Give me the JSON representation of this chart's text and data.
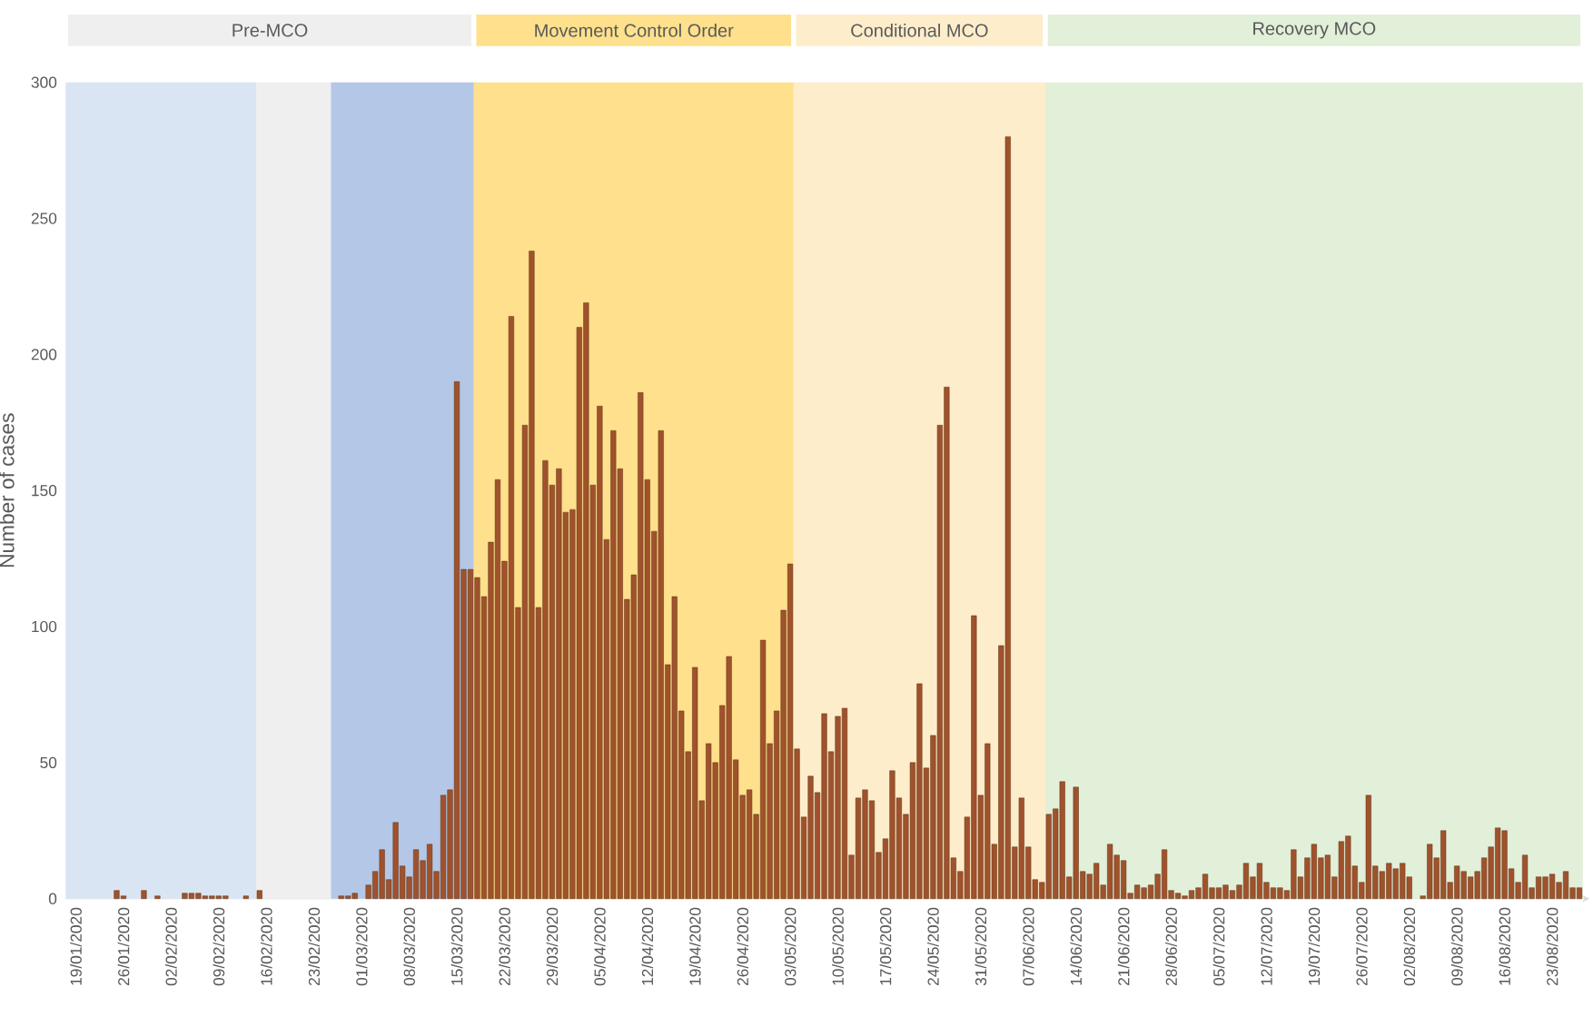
{
  "chart_data": {
    "type": "bar",
    "ylabel": "Number of cases",
    "color": "#a0522d",
    "xlim": [
      "2020-01-18",
      "2020-08-28"
    ],
    "ylim": [
      0,
      300
    ],
    "yticks": [
      0,
      50,
      100,
      150,
      200,
      250,
      300
    ],
    "xticks": [
      {
        "value": "2020-01-19",
        "label": "19/01/2020"
      },
      {
        "value": "2020-01-26",
        "label": "26/01/2020"
      },
      {
        "value": "2020-02-02",
        "label": "02/02/2020"
      },
      {
        "value": "2020-02-09",
        "label": "09/02/2020"
      },
      {
        "value": "2020-02-16",
        "label": "16/02/2020"
      },
      {
        "value": "2020-02-23",
        "label": "23/02/2020"
      },
      {
        "value": "2020-03-01",
        "label": "01/03/2020"
      },
      {
        "value": "2020-03-08",
        "label": "08/03/2020"
      },
      {
        "value": "2020-03-15",
        "label": "15/03/2020"
      },
      {
        "value": "2020-03-22",
        "label": "22/03/2020"
      },
      {
        "value": "2020-03-29",
        "label": "29/03/2020"
      },
      {
        "value": "2020-04-05",
        "label": "05/04/2020"
      },
      {
        "value": "2020-04-12",
        "label": "12/04/2020"
      },
      {
        "value": "2020-04-19",
        "label": "19/04/2020"
      },
      {
        "value": "2020-04-26",
        "label": "26/04/2020"
      },
      {
        "value": "2020-05-03",
        "label": "03/05/2020"
      },
      {
        "value": "2020-05-10",
        "label": "10/05/2020"
      },
      {
        "value": "2020-05-17",
        "label": "17/05/2020"
      },
      {
        "value": "2020-05-24",
        "label": "24/05/2020"
      },
      {
        "value": "2020-05-31",
        "label": "31/05/2020"
      },
      {
        "value": "2020-06-07",
        "label": "07/06/2020"
      },
      {
        "value": "2020-06-14",
        "label": "14/06/2020"
      },
      {
        "value": "2020-06-21",
        "label": "21/06/2020"
      },
      {
        "value": "2020-06-28",
        "label": "28/06/2020"
      },
      {
        "value": "2020-07-05",
        "label": "05/07/2020"
      },
      {
        "value": "2020-07-12",
        "label": "12/07/2020"
      },
      {
        "value": "2020-07-19",
        "label": "19/07/2020"
      },
      {
        "value": "2020-07-26",
        "label": "26/07/2020"
      },
      {
        "value": "2020-08-02",
        "label": "02/08/2020"
      },
      {
        "value": "2020-08-09",
        "label": "09/08/2020"
      },
      {
        "value": "2020-08-16",
        "label": "16/08/2020"
      },
      {
        "value": "2020-08-23",
        "label": "23/08/2020"
      }
    ],
    "bands": [
      {
        "axis": "x",
        "from": "2020-01-18",
        "to": "2020-03-18",
        "label": "Pre-MCO",
        "color": "#efefef"
      },
      {
        "axis": "x",
        "from": "2020-01-18",
        "to": "2020-02-15",
        "color": "#dae5f4"
      },
      {
        "axis": "x",
        "from": "2020-02-26",
        "to": "2020-03-18",
        "color": "#b4c7e7"
      },
      {
        "axis": "x",
        "from": "2020-03-18",
        "to": "2020-05-04",
        "label": "Movement Control Order",
        "color": "#ffe08c"
      },
      {
        "axis": "x",
        "from": "2020-05-04",
        "to": "2020-06-10",
        "label": "Conditional MCO",
        "color": "#fdedcb"
      },
      {
        "axis": "x",
        "from": "2020-06-10",
        "to": "2020-08-28",
        "label": "Recovery MCO",
        "color": "#e2efd9"
      }
    ],
    "x": [
      "2020-01-25",
      "2020-01-26",
      "2020-01-29",
      "2020-01-31",
      "2020-02-04",
      "2020-02-05",
      "2020-02-06",
      "2020-02-07",
      "2020-02-08",
      "2020-02-09",
      "2020-02-10",
      "2020-02-13",
      "2020-02-15",
      "2020-02-27",
      "2020-02-28",
      "2020-02-29",
      "2020-03-02",
      "2020-03-03",
      "2020-03-04",
      "2020-03-05",
      "2020-03-06",
      "2020-03-07",
      "2020-03-08",
      "2020-03-09",
      "2020-03-10",
      "2020-03-11",
      "2020-03-12",
      "2020-03-13",
      "2020-03-14",
      "2020-03-15",
      "2020-03-16",
      "2020-03-17",
      "2020-03-18",
      "2020-03-19",
      "2020-03-20",
      "2020-03-21",
      "2020-03-22",
      "2020-03-23",
      "2020-03-24",
      "2020-03-25",
      "2020-03-26",
      "2020-03-27",
      "2020-03-28",
      "2020-03-29",
      "2020-03-30",
      "2020-03-31",
      "2020-04-01",
      "2020-04-02",
      "2020-04-03",
      "2020-04-04",
      "2020-04-05",
      "2020-04-06",
      "2020-04-07",
      "2020-04-08",
      "2020-04-09",
      "2020-04-10",
      "2020-04-11",
      "2020-04-12",
      "2020-04-13",
      "2020-04-14",
      "2020-04-15",
      "2020-04-16",
      "2020-04-17",
      "2020-04-18",
      "2020-04-19",
      "2020-04-20",
      "2020-04-21",
      "2020-04-22",
      "2020-04-23",
      "2020-04-24",
      "2020-04-25",
      "2020-04-26",
      "2020-04-27",
      "2020-04-28",
      "2020-04-29",
      "2020-04-30",
      "2020-05-01",
      "2020-05-02",
      "2020-05-03",
      "2020-05-04",
      "2020-05-05",
      "2020-05-06",
      "2020-05-07",
      "2020-05-08",
      "2020-05-09",
      "2020-05-10",
      "2020-05-11",
      "2020-05-12",
      "2020-05-13",
      "2020-05-14",
      "2020-05-15",
      "2020-05-16",
      "2020-05-17",
      "2020-05-18",
      "2020-05-19",
      "2020-05-20",
      "2020-05-21",
      "2020-05-22",
      "2020-05-23",
      "2020-05-24",
      "2020-05-25",
      "2020-05-26",
      "2020-05-27",
      "2020-05-28",
      "2020-05-29",
      "2020-05-30",
      "2020-05-31",
      "2020-06-01",
      "2020-06-02",
      "2020-06-03",
      "2020-06-04",
      "2020-06-05",
      "2020-06-06",
      "2020-06-07",
      "2020-06-08",
      "2020-06-09",
      "2020-06-10",
      "2020-06-11",
      "2020-06-12",
      "2020-06-13",
      "2020-06-14",
      "2020-06-15",
      "2020-06-16",
      "2020-06-17",
      "2020-06-18",
      "2020-06-19",
      "2020-06-20",
      "2020-06-21",
      "2020-06-22",
      "2020-06-23",
      "2020-06-24",
      "2020-06-25",
      "2020-06-26",
      "2020-06-27",
      "2020-06-28",
      "2020-06-29",
      "2020-06-30",
      "2020-07-01",
      "2020-07-02",
      "2020-07-03",
      "2020-07-04",
      "2020-07-05",
      "2020-07-06",
      "2020-07-07",
      "2020-07-08",
      "2020-07-09",
      "2020-07-10",
      "2020-07-11",
      "2020-07-12",
      "2020-07-13",
      "2020-07-14",
      "2020-07-15",
      "2020-07-16",
      "2020-07-17",
      "2020-07-18",
      "2020-07-19",
      "2020-07-20",
      "2020-07-21",
      "2020-07-22",
      "2020-07-23",
      "2020-07-24",
      "2020-07-25",
      "2020-07-26",
      "2020-07-27",
      "2020-07-28",
      "2020-07-29",
      "2020-07-30",
      "2020-07-31",
      "2020-08-01",
      "2020-08-02",
      "2020-08-04",
      "2020-08-05",
      "2020-08-06",
      "2020-08-07",
      "2020-08-08",
      "2020-08-09",
      "2020-08-10",
      "2020-08-11",
      "2020-08-12",
      "2020-08-13",
      "2020-08-14",
      "2020-08-15",
      "2020-08-16",
      "2020-08-17",
      "2020-08-18",
      "2020-08-19",
      "2020-08-20",
      "2020-08-21",
      "2020-08-22",
      "2020-08-23",
      "2020-08-24",
      "2020-08-25",
      "2020-08-26",
      "2020-08-27"
    ],
    "values": [
      3,
      1,
      3,
      1,
      2,
      2,
      2,
      1,
      1,
      1,
      1,
      1,
      3,
      1,
      1,
      2,
      5,
      10,
      18,
      7,
      28,
      12,
      8,
      18,
      14,
      20,
      10,
      38,
      40,
      190,
      121,
      121,
      118,
      111,
      131,
      154,
      124,
      214,
      107,
      174,
      238,
      107,
      161,
      152,
      158,
      142,
      143,
      210,
      219,
      152,
      181,
      132,
      172,
      158,
      110,
      119,
      186,
      154,
      135,
      172,
      86,
      111,
      69,
      54,
      85,
      36,
      57,
      50,
      71,
      89,
      51,
      38,
      40,
      31,
      95,
      57,
      69,
      106,
      123,
      55,
      30,
      45,
      39,
      68,
      54,
      67,
      70,
      16,
      37,
      40,
      36,
      17,
      22,
      47,
      37,
      31,
      50,
      79,
      48,
      60,
      174,
      188,
      15,
      10,
      30,
      104,
      38,
      57,
      20,
      93,
      280,
      19,
      37,
      19,
      7,
      6,
      31,
      33,
      43,
      8,
      41,
      10,
      9,
      13,
      5,
      20,
      16,
      14,
      2,
      5,
      4,
      5,
      9,
      18,
      3,
      2,
      1,
      3,
      4,
      9,
      4,
      4,
      5,
      3,
      5,
      13,
      8,
      13,
      6,
      4,
      4,
      3,
      18,
      8,
      15,
      20,
      15,
      16,
      8,
      21,
      23,
      12,
      6,
      38,
      12,
      10,
      13,
      11,
      13,
      8,
      1,
      20,
      15,
      25,
      6,
      12,
      10,
      8,
      10,
      15,
      19,
      26,
      25,
      11,
      6,
      16,
      4,
      8,
      8,
      9,
      6,
      10,
      4,
      4
    ]
  }
}
